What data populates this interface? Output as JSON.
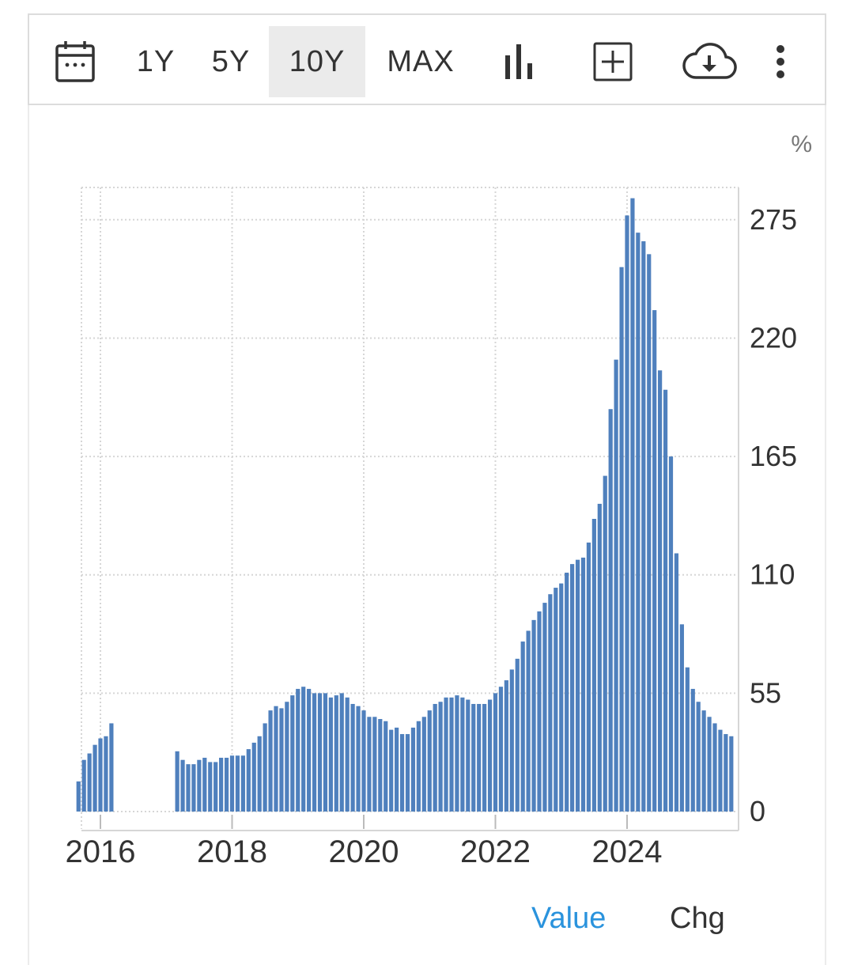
{
  "toolbar": {
    "items": [
      {
        "id": "calendar",
        "icon": "calendar-icon"
      },
      {
        "id": "1y",
        "label": "1Y"
      },
      {
        "id": "5y",
        "label": "5Y"
      },
      {
        "id": "10y",
        "label": "10Y",
        "active": true
      },
      {
        "id": "max",
        "label": "MAX"
      },
      {
        "id": "chart-type",
        "icon": "bar-chart-icon"
      },
      {
        "id": "compare",
        "icon": "add-box-icon"
      },
      {
        "id": "download",
        "icon": "cloud-download-icon"
      },
      {
        "id": "more",
        "icon": "more-vertical-icon"
      }
    ]
  },
  "tabs": {
    "value": "Value",
    "chg": "Chg",
    "active": "value",
    "active_color": "#2a93dd"
  },
  "chart_data": {
    "type": "bar",
    "unit_label": "%",
    "bar_color": "#4f80bd",
    "ylim": [
      0,
      290
    ],
    "yticks": [
      0,
      55,
      110,
      165,
      220,
      275
    ],
    "xticks": [
      "2016",
      "2018",
      "2020",
      "2022",
      "2024"
    ],
    "grid": true,
    "y_axis_position": "right",
    "series": [
      {
        "x_start": "2015-09",
        "values": [
          14,
          24,
          27,
          31,
          34,
          35,
          41,
          null,
          null,
          null,
          null,
          null,
          null,
          null,
          null,
          null,
          null,
          null,
          28,
          24,
          22,
          22,
          24,
          25,
          23,
          23,
          25,
          25,
          26,
          26,
          26,
          29,
          32,
          35,
          41,
          47,
          49,
          48,
          51,
          54,
          57,
          58,
          57,
          55,
          55,
          55,
          53,
          54,
          55,
          53,
          50,
          49,
          47,
          44,
          44,
          43,
          42,
          38,
          39,
          36,
          36,
          39,
          42,
          44,
          47,
          50,
          51,
          53,
          53,
          54,
          53,
          52,
          50,
          50,
          50,
          52,
          55,
          58,
          61,
          66,
          71,
          79,
          84,
          89,
          93,
          97,
          101,
          104,
          106,
          111,
          115,
          117,
          118,
          125,
          136,
          143,
          156,
          187,
          210,
          253,
          277,
          285,
          269,
          265,
          259,
          233,
          205,
          196,
          165,
          120,
          87,
          67,
          57,
          51,
          47,
          44,
          41,
          38,
          36,
          35
        ]
      }
    ]
  }
}
